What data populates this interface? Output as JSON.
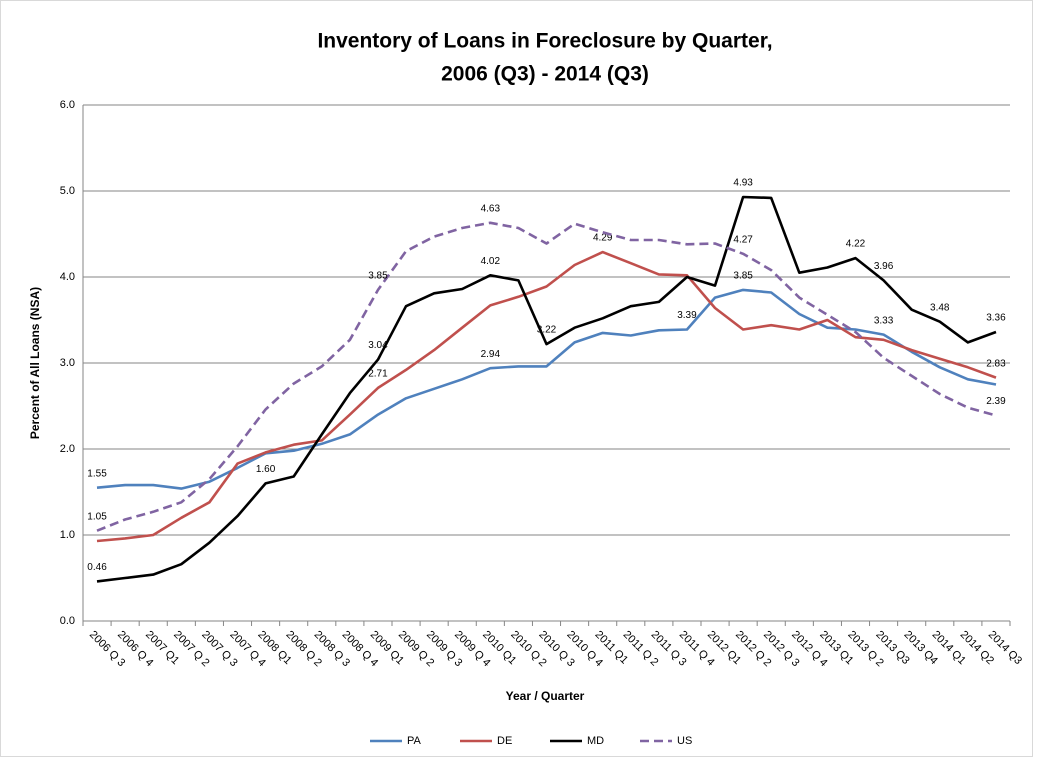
{
  "chart_data": {
    "type": "line",
    "title": [
      "Inventory of Loans in Foreclosure by Quarter,",
      "2006 (Q3) - 2014 (Q3)"
    ],
    "x_label": "Year / Quarter",
    "y_label": "Percent of All Loans (NSA)",
    "categories": [
      "2006 Q 3",
      "2006 Q 4",
      "2007 Q1",
      "2007 Q 2",
      "2007 Q 3",
      "2007 Q 4",
      "2008 Q1",
      "2008 Q 2",
      "2008 Q 3",
      "2008 Q 4",
      "2009 Q1",
      "2009 Q 2",
      "2009 Q 3",
      "2009 Q 4",
      "2010 Q1",
      "2010 Q 2",
      "2010 Q 3",
      "2010 Q 4",
      "2011 Q1",
      "2011 Q 2",
      "2011 Q 3",
      "2011 Q 4",
      "2012 Q1",
      "2012 Q 2",
      "2012 Q 3",
      "2012 Q 4",
      "2013 Q1",
      "2013 Q 2",
      "2013 Q3",
      "2013 Q4",
      "2014 Q1",
      "2014 Q2",
      "2014 Q3"
    ],
    "ylim": [
      0,
      6
    ],
    "yticks": [
      {
        "value": 0,
        "label": "0.0"
      },
      {
        "value": 1,
        "label": "1.0"
      },
      {
        "value": 2,
        "label": "2.0"
      },
      {
        "value": 3,
        "label": "3.0"
      },
      {
        "value": 4,
        "label": "4.0"
      },
      {
        "value": 5,
        "label": "5.0"
      },
      {
        "value": 6,
        "label": "6.0"
      }
    ],
    "grid": true,
    "legend": "bottom",
    "series": [
      {
        "name": "PA",
        "color": "#4f81bd",
        "dash": false,
        "values": [
          1.55,
          1.58,
          1.58,
          1.54,
          1.62,
          1.78,
          1.95,
          1.98,
          2.06,
          2.17,
          2.4,
          2.59,
          2.7,
          2.81,
          2.94,
          2.96,
          2.96,
          3.24,
          3.35,
          3.32,
          3.38,
          3.39,
          3.76,
          3.85,
          3.82,
          3.57,
          3.41,
          3.39,
          3.33,
          3.13,
          2.95,
          2.81,
          2.75
        ],
        "value_labels": [
          "1.55",
          null,
          null,
          null,
          null,
          null,
          null,
          null,
          null,
          null,
          null,
          null,
          null,
          null,
          "2.94",
          null,
          null,
          null,
          null,
          null,
          null,
          "3.39",
          null,
          "3.85",
          null,
          null,
          null,
          null,
          "3.33",
          null,
          null,
          null,
          null
        ]
      },
      {
        "name": "DE",
        "color": "#c0504d",
        "dash": false,
        "values": [
          0.93,
          0.96,
          1.0,
          1.2,
          1.38,
          1.83,
          1.96,
          2.05,
          2.1,
          2.4,
          2.71,
          2.92,
          3.15,
          3.41,
          3.67,
          3.77,
          3.89,
          4.14,
          4.29,
          4.16,
          4.03,
          4.02,
          3.64,
          3.39,
          3.44,
          3.39,
          3.5,
          3.3,
          3.27,
          3.15,
          3.05,
          2.95,
          2.83
        ],
        "value_labels": [
          null,
          null,
          null,
          null,
          null,
          null,
          null,
          null,
          null,
          null,
          "2.71",
          null,
          null,
          null,
          null,
          null,
          null,
          null,
          "4.29",
          null,
          null,
          null,
          null,
          null,
          null,
          null,
          null,
          null,
          null,
          null,
          null,
          null,
          "2.83"
        ]
      },
      {
        "name": "MD",
        "color": "#000000",
        "dash": false,
        "values": [
          0.46,
          0.5,
          0.54,
          0.66,
          0.91,
          1.22,
          1.6,
          1.68,
          2.17,
          2.65,
          3.04,
          3.66,
          3.81,
          3.86,
          4.02,
          3.96,
          3.22,
          3.41,
          3.52,
          3.66,
          3.71,
          4.0,
          3.9,
          4.93,
          4.92,
          4.05,
          4.11,
          4.22,
          3.96,
          3.62,
          3.48,
          3.24,
          3.36
        ],
        "value_labels": [
          "0.46",
          null,
          null,
          null,
          null,
          null,
          "1.60",
          null,
          null,
          null,
          "3.04",
          null,
          null,
          null,
          "4.02",
          null,
          "3.22",
          null,
          null,
          null,
          null,
          null,
          null,
          "4.93",
          null,
          null,
          null,
          "4.22",
          "3.96",
          null,
          "3.48",
          null,
          "3.36"
        ]
      },
      {
        "name": "US",
        "color": "#8064a2",
        "dash": true,
        "values": [
          1.05,
          1.18,
          1.27,
          1.38,
          1.65,
          2.03,
          2.46,
          2.76,
          2.96,
          3.27,
          3.85,
          4.3,
          4.47,
          4.57,
          4.63,
          4.57,
          4.39,
          4.62,
          4.52,
          4.43,
          4.43,
          4.38,
          4.39,
          4.27,
          4.08,
          3.76,
          3.56,
          3.36,
          3.06,
          2.85,
          2.64,
          2.48,
          2.39
        ],
        "value_labels": [
          "1.05",
          null,
          null,
          null,
          null,
          null,
          null,
          null,
          null,
          null,
          "3.85",
          null,
          null,
          null,
          "4.63",
          null,
          null,
          null,
          null,
          null,
          null,
          null,
          null,
          "4.27",
          null,
          null,
          null,
          null,
          null,
          null,
          null,
          null,
          "2.39"
        ]
      }
    ]
  }
}
